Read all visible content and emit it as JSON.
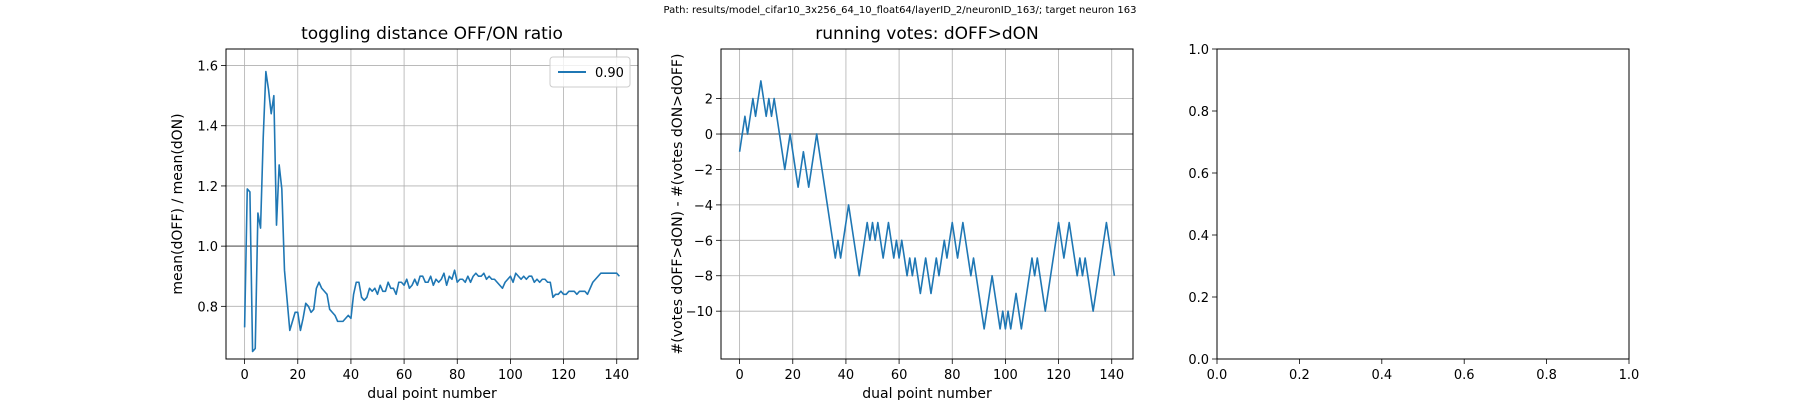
{
  "suptitle": "Path: results/model_cifar10_3x256_64_10_float64/layerID_2/neuronID_163/; target neuron 163",
  "colors": {
    "series": "#1f77b4",
    "reference_line": "#808080",
    "grid": "#b0b0b0"
  },
  "chart_data": [
    {
      "type": "line",
      "title": "toggling distance OFF/ON ratio",
      "xlabel": "dual point number",
      "ylabel": "mean(dOFF) / mean(dON)",
      "xlim": [
        -7,
        148
      ],
      "ylim": [
        0.625,
        1.655
      ],
      "xticks": [
        0,
        20,
        40,
        60,
        80,
        100,
        120,
        140
      ],
      "yticks": [
        0.8,
        1.0,
        1.2,
        1.4,
        1.6
      ],
      "ytick_labels": [
        "0.8",
        "1.0",
        "1.2",
        "1.4",
        "1.6"
      ],
      "grid": true,
      "legend": {
        "placement": "upper right",
        "entries": [
          "0.90"
        ]
      },
      "reference_line": 1.0,
      "series": [
        {
          "name": "0.90",
          "x": [
            0,
            1,
            2,
            3,
            4,
            5,
            6,
            7,
            8,
            9,
            10,
            11,
            12,
            13,
            14,
            15,
            16,
            17,
            18,
            19,
            20,
            21,
            22,
            23,
            24,
            25,
            26,
            27,
            28,
            29,
            30,
            31,
            32,
            33,
            34,
            35,
            36,
            37,
            38,
            39,
            40,
            41,
            42,
            43,
            44,
            45,
            46,
            47,
            48,
            49,
            50,
            51,
            52,
            53,
            54,
            55,
            56,
            57,
            58,
            59,
            60,
            61,
            62,
            63,
            64,
            65,
            66,
            67,
            68,
            69,
            70,
            71,
            72,
            73,
            74,
            75,
            76,
            77,
            78,
            79,
            80,
            81,
            82,
            83,
            84,
            85,
            86,
            87,
            88,
            89,
            90,
            91,
            92,
            93,
            94,
            95,
            96,
            97,
            98,
            99,
            100,
            101,
            102,
            103,
            104,
            105,
            106,
            107,
            108,
            109,
            110,
            111,
            112,
            113,
            114,
            115,
            116,
            117,
            118,
            119,
            120,
            121,
            122,
            123,
            124,
            125,
            126,
            127,
            128,
            129,
            130,
            131,
            132,
            133,
            134,
            135,
            136,
            137,
            138,
            139,
            140,
            141
          ],
          "y": [
            0.73,
            1.19,
            1.18,
            0.65,
            0.66,
            1.11,
            1.06,
            1.36,
            1.58,
            1.52,
            1.44,
            1.5,
            1.07,
            1.27,
            1.19,
            0.92,
            0.82,
            0.72,
            0.75,
            0.78,
            0.78,
            0.72,
            0.76,
            0.81,
            0.8,
            0.78,
            0.79,
            0.86,
            0.88,
            0.86,
            0.85,
            0.84,
            0.79,
            0.78,
            0.77,
            0.75,
            0.75,
            0.75,
            0.76,
            0.77,
            0.76,
            0.84,
            0.88,
            0.88,
            0.83,
            0.82,
            0.83,
            0.86,
            0.85,
            0.86,
            0.84,
            0.87,
            0.85,
            0.85,
            0.88,
            0.86,
            0.86,
            0.84,
            0.88,
            0.88,
            0.87,
            0.89,
            0.86,
            0.87,
            0.89,
            0.87,
            0.9,
            0.9,
            0.88,
            0.88,
            0.9,
            0.87,
            0.89,
            0.88,
            0.89,
            0.91,
            0.87,
            0.9,
            0.89,
            0.92,
            0.88,
            0.89,
            0.89,
            0.88,
            0.9,
            0.88,
            0.9,
            0.91,
            0.9,
            0.9,
            0.91,
            0.89,
            0.9,
            0.89,
            0.89,
            0.88,
            0.87,
            0.86,
            0.88,
            0.89,
            0.9,
            0.88,
            0.91,
            0.9,
            0.89,
            0.9,
            0.89,
            0.9,
            0.9,
            0.88,
            0.89,
            0.88,
            0.89,
            0.89,
            0.88,
            0.88,
            0.83,
            0.84,
            0.84,
            0.85,
            0.84,
            0.84,
            0.85,
            0.85,
            0.85,
            0.84,
            0.85,
            0.85,
            0.85,
            0.84,
            0.86,
            0.88,
            0.89,
            0.9,
            0.91,
            0.91,
            0.91,
            0.91,
            0.91,
            0.91,
            0.91,
            0.9
          ]
        }
      ]
    },
    {
      "type": "line",
      "title": "running votes: dOFF>dON",
      "xlabel": "dual point number",
      "ylabel": "#(votes dOFF>dON) - #(votes dON>dOFF)",
      "xlim": [
        -7,
        148
      ],
      "ylim": [
        -12.7,
        4.8
      ],
      "xticks": [
        0,
        20,
        40,
        60,
        80,
        100,
        120,
        140
      ],
      "yticks": [
        -10,
        -8,
        -6,
        -4,
        -2,
        0,
        2
      ],
      "ytick_labels": [
        "−10",
        "−8",
        "−6",
        "−4",
        "−2",
        "0",
        "2"
      ],
      "grid": true,
      "reference_line": 0,
      "series": [
        {
          "x": [
            0,
            1,
            2,
            3,
            4,
            5,
            6,
            7,
            8,
            9,
            10,
            11,
            12,
            13,
            14,
            15,
            16,
            17,
            18,
            19,
            20,
            21,
            22,
            23,
            24,
            25,
            26,
            27,
            28,
            29,
            30,
            31,
            32,
            33,
            34,
            35,
            36,
            37,
            38,
            39,
            40,
            41,
            42,
            43,
            44,
            45,
            46,
            47,
            48,
            49,
            50,
            51,
            52,
            53,
            54,
            55,
            56,
            57,
            58,
            59,
            60,
            61,
            62,
            63,
            64,
            65,
            66,
            67,
            68,
            69,
            70,
            71,
            72,
            73,
            74,
            75,
            76,
            77,
            78,
            79,
            80,
            81,
            82,
            83,
            84,
            85,
            86,
            87,
            88,
            89,
            90,
            91,
            92,
            93,
            94,
            95,
            96,
            97,
            98,
            99,
            100,
            101,
            102,
            103,
            104,
            105,
            106,
            107,
            108,
            109,
            110,
            111,
            112,
            113,
            114,
            115,
            116,
            117,
            118,
            119,
            120,
            121,
            122,
            123,
            124,
            125,
            126,
            127,
            128,
            129,
            130,
            131,
            132,
            133,
            134,
            135,
            136,
            137,
            138,
            139,
            140,
            141
          ],
          "y": [
            -1,
            0,
            1,
            0,
            1,
            2,
            1,
            2,
            3,
            2,
            1,
            2,
            1,
            2,
            1,
            0,
            -1,
            -2,
            -1,
            0,
            -1,
            -2,
            -3,
            -2,
            -1,
            -2,
            -3,
            -2,
            -1,
            0,
            -1,
            -2,
            -3,
            -4,
            -5,
            -6,
            -7,
            -6,
            -7,
            -6,
            -5,
            -4,
            -5,
            -6,
            -7,
            -8,
            -7,
            -6,
            -5,
            -6,
            -5,
            -6,
            -5,
            -6,
            -7,
            -6,
            -5,
            -6,
            -7,
            -6,
            -7,
            -6,
            -7,
            -8,
            -7,
            -8,
            -7,
            -8,
            -9,
            -8,
            -7,
            -8,
            -9,
            -8,
            -7,
            -8,
            -7,
            -6,
            -7,
            -6,
            -5,
            -6,
            -7,
            -6,
            -5,
            -6,
            -7,
            -8,
            -7,
            -8,
            -9,
            -10,
            -11,
            -10,
            -9,
            -8,
            -9,
            -10,
            -11,
            -10,
            -11,
            -10,
            -11,
            -10,
            -9,
            -10,
            -11,
            -10,
            -9,
            -8,
            -7,
            -8,
            -7,
            -8,
            -9,
            -10,
            -9,
            -8,
            -7,
            -6,
            -5,
            -6,
            -7,
            -6,
            -5,
            -6,
            -7,
            -8,
            -7,
            -8,
            -7,
            -8,
            -9,
            -10,
            -9,
            -8,
            -7,
            -6,
            -5,
            -6,
            -7,
            -8
          ]
        }
      ]
    },
    {
      "type": "line",
      "title": "",
      "xlabel": "",
      "ylabel": "",
      "xlim": [
        0,
        1
      ],
      "ylim": [
        0,
        1
      ],
      "xticks": [
        0,
        0.2,
        0.4,
        0.6,
        0.8,
        1.0
      ],
      "xtick_labels": [
        "0.0",
        "0.2",
        "0.4",
        "0.6",
        "0.8",
        "1.0"
      ],
      "yticks": [
        0,
        0.2,
        0.4,
        0.6,
        0.8,
        1.0
      ],
      "ytick_labels": [
        "0.0",
        "0.2",
        "0.4",
        "0.6",
        "0.8",
        "1.0"
      ],
      "grid": false,
      "series": []
    }
  ]
}
